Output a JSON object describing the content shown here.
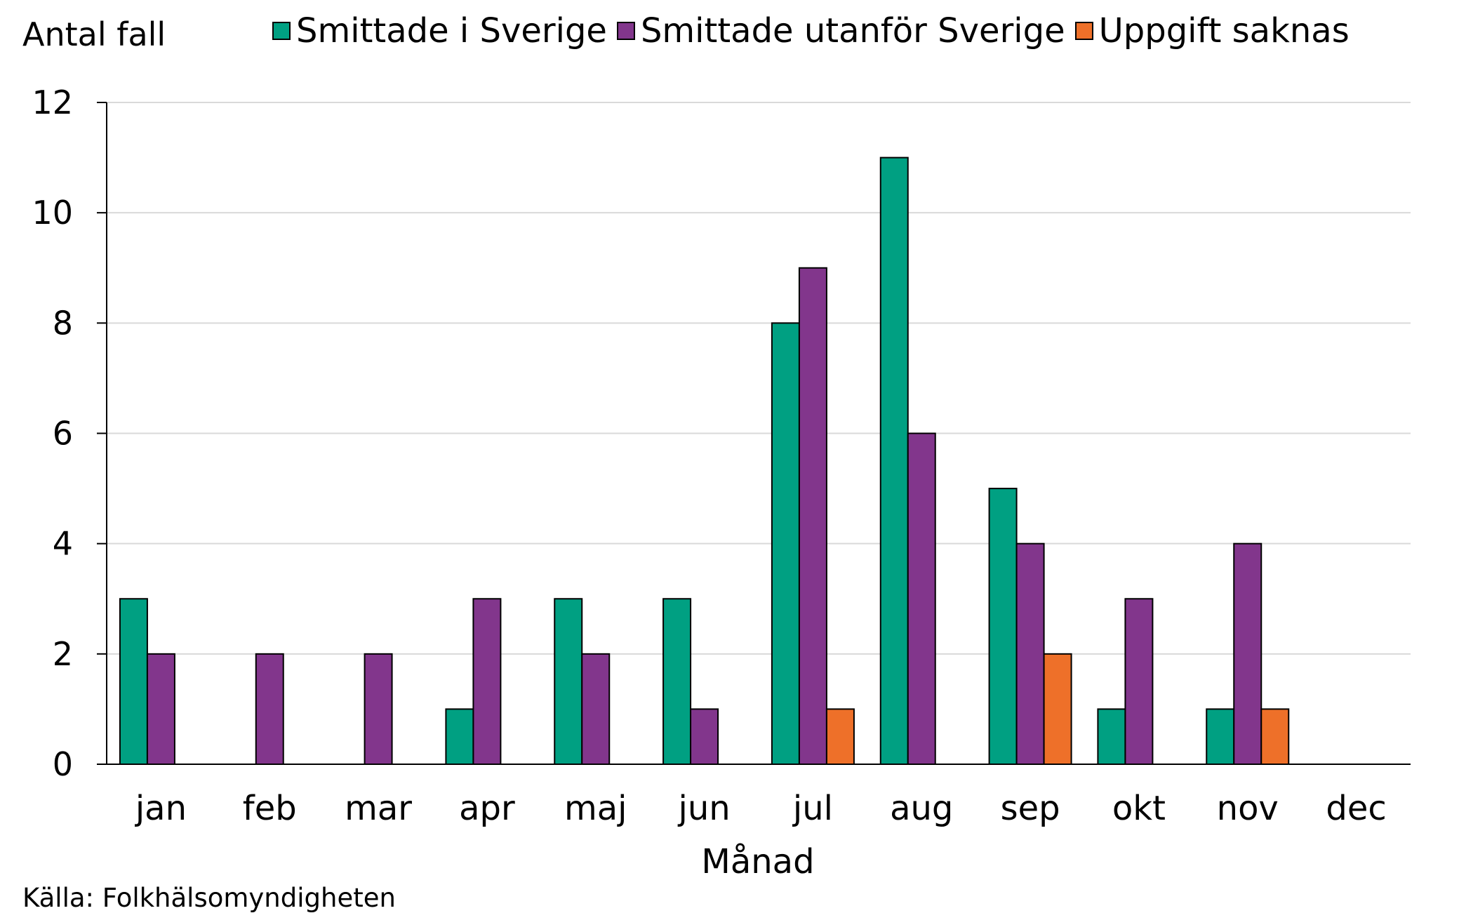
{
  "chart_data": {
    "type": "bar",
    "title": "",
    "ylabel": "Antal fall",
    "xlabel": "Månad",
    "source": "Källa: Folkhälsomyndigheten",
    "categories": [
      "jan",
      "feb",
      "mar",
      "apr",
      "maj",
      "jun",
      "jul",
      "aug",
      "sep",
      "okt",
      "nov",
      "dec"
    ],
    "series": [
      {
        "name": "Smittade i Sverige",
        "color": "#00a082",
        "values": [
          3,
          0,
          0,
          1,
          3,
          3,
          8,
          11,
          5,
          1,
          1,
          0
        ]
      },
      {
        "name": "Smittade utanför Sverige",
        "color": "#82368c",
        "values": [
          2,
          2,
          2,
          3,
          2,
          1,
          9,
          6,
          4,
          3,
          4,
          0
        ]
      },
      {
        "name": "Uppgift saknas",
        "color": "#ee7029",
        "values": [
          0,
          0,
          0,
          0,
          0,
          0,
          1,
          0,
          2,
          0,
          1,
          0
        ]
      }
    ],
    "ylim": [
      0,
      12
    ],
    "yticks": [
      0,
      2,
      4,
      6,
      8,
      10,
      12
    ],
    "grid": true,
    "legend": "top"
  }
}
